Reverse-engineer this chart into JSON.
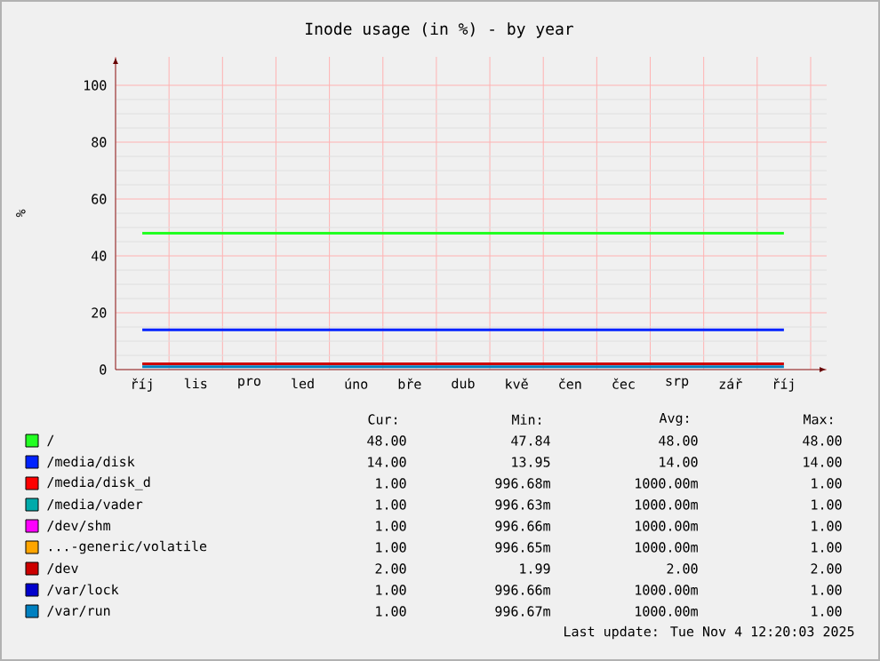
{
  "chart_data": {
    "type": "line",
    "title": "Inode usage (in %) - by year",
    "ylabel": "%",
    "categories": [
      "říj",
      "lis",
      "pro",
      "led",
      "úno",
      "bře",
      "dub",
      "kvě",
      "čen",
      "čec",
      "srp",
      "zář",
      "říj"
    ],
    "series": [
      {
        "name": "/",
        "color": "#22ff22",
        "values": [
          48,
          48,
          48,
          48,
          48,
          48,
          48,
          48,
          48,
          48,
          48,
          48,
          48
        ]
      },
      {
        "name": "/media/disk",
        "color": "#0022ff",
        "values": [
          14,
          14,
          14,
          14,
          14,
          14,
          14,
          14,
          14,
          14,
          14,
          14,
          14
        ]
      },
      {
        "name": "/media/disk_d",
        "color": "#ff0000",
        "values": [
          null,
          null,
          null,
          null,
          null,
          null,
          null,
          null,
          null,
          null,
          null,
          null,
          null
        ]
      },
      {
        "name": "/media/vader",
        "color": "#00aaaa",
        "values": [
          null,
          null,
          null,
          null,
          null,
          null,
          null,
          null,
          null,
          null,
          null,
          null,
          null
        ]
      },
      {
        "name": "/dev/shm",
        "color": "#ff00ff",
        "values": [
          null,
          null,
          null,
          null,
          null,
          null,
          null,
          null,
          null,
          null,
          null,
          null,
          null
        ]
      },
      {
        "name": "...-generic/volatile",
        "color": "#ffa500",
        "values": [
          null,
          null,
          null,
          null,
          null,
          null,
          null,
          null,
          null,
          null,
          null,
          null,
          null
        ]
      },
      {
        "name": "/dev",
        "color": "#cc0000",
        "values": [
          2,
          2,
          2,
          2,
          2,
          2,
          2,
          2,
          2,
          2,
          2,
          2,
          2
        ]
      },
      {
        "name": "/var/lock",
        "color": "#0000cc",
        "values": [
          null,
          null,
          null,
          null,
          null,
          null,
          null,
          null,
          null,
          null,
          null,
          null,
          null
        ]
      },
      {
        "name": "/var/run",
        "color": "#0080c0",
        "values": [
          1,
          1,
          1,
          1,
          1,
          1,
          1,
          1,
          1,
          1,
          1,
          1,
          1
        ]
      }
    ],
    "ylim": [
      0,
      110
    ],
    "yticks": [
      0,
      20,
      40,
      60,
      80,
      100
    ],
    "grid": true,
    "legend": "bottom",
    "annotations": [
      "Cur:",
      "Min:",
      "Avg:",
      "Max:",
      "48.00",
      "47.84",
      "48.00",
      "48.00",
      "14.00",
      "13.95",
      "14.00",
      "14.00",
      "1.00",
      "996.68m",
      "1000.00m",
      "1.00",
      "1.00",
      "996.63m",
      "1000.00m",
      "1.00",
      "1.00",
      "996.66m",
      "1000.00m",
      "1.00",
      "1.00",
      "996.65m",
      "1000.00m",
      "1.00",
      "2.00",
      "1.99",
      "2.00",
      "2.00",
      "1.00",
      "996.66m",
      "1000.00m",
      "1.00",
      "1.00",
      "996.67m",
      "1000.00m",
      "1.00",
      "Last update: Tue Nov  4 12:20:03 2025"
    ]
  }
}
